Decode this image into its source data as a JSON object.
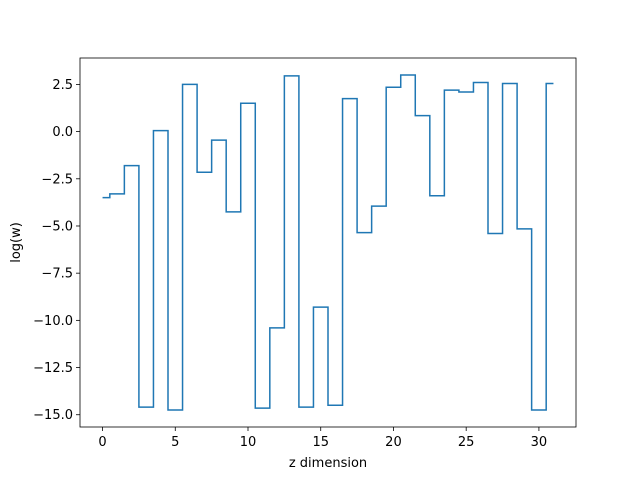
{
  "chart_data": {
    "type": "line",
    "drawstyle": "steps-mid",
    "title": "",
    "xlabel": "z dimension",
    "ylabel": "log(w)",
    "xlim": [
      -1.55,
      32.55
    ],
    "ylim": [
      -15.65,
      3.9
    ],
    "grid": false,
    "legend": "none",
    "line_color": "#1f77b4",
    "xticks": [
      0,
      5,
      10,
      15,
      20,
      25,
      30
    ],
    "xtick_labels": [
      "0",
      "5",
      "10",
      "15",
      "20",
      "25",
      "30"
    ],
    "yticks": [
      2.5,
      0.0,
      -2.5,
      -5.0,
      -7.5,
      -10.0,
      -12.5,
      -15.0
    ],
    "ytick_labels": [
      "2.5",
      "0.0",
      "−2.5",
      "−5.0",
      "−7.5",
      "−10.0",
      "−12.5",
      "−15.0"
    ],
    "x": [
      0,
      1,
      2,
      3,
      4,
      5,
      6,
      7,
      8,
      9,
      10,
      11,
      12,
      13,
      14,
      15,
      16,
      17,
      18,
      19,
      20,
      21,
      22,
      23,
      24,
      25,
      26,
      27,
      28,
      29,
      30,
      31
    ],
    "y": [
      -3.5,
      -3.3,
      -1.8,
      -14.6,
      0.05,
      -14.75,
      2.5,
      -2.15,
      -0.45,
      -4.25,
      1.5,
      -14.65,
      -10.4,
      2.95,
      -14.6,
      -9.3,
      -14.5,
      1.75,
      -5.35,
      -3.95,
      2.35,
      3.0,
      0.85,
      -3.4,
      2.2,
      2.1,
      2.6,
      -5.4,
      2.55,
      -5.15,
      -14.75,
      2.55
    ]
  }
}
